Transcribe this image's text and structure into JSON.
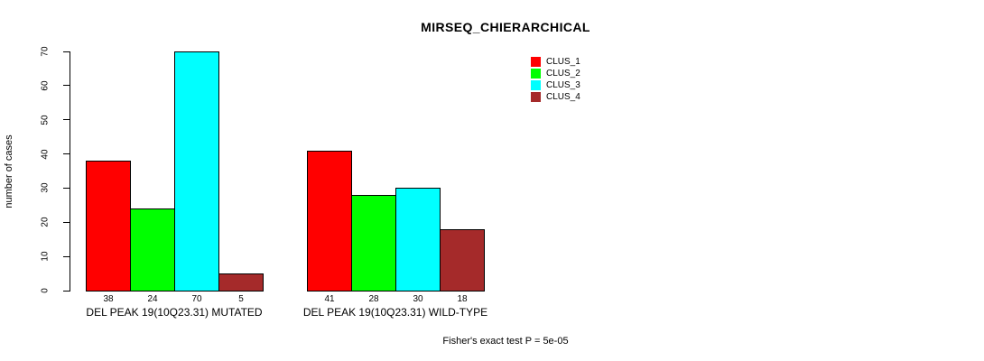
{
  "chart_data": {
    "type": "bar",
    "title": "MIRSEQ_CHIERARCHICAL",
    "xlabel": "",
    "ylabel": "number of cases",
    "ylim": [
      0,
      70
    ],
    "yticks": [
      0,
      10,
      20,
      30,
      40,
      50,
      60,
      70
    ],
    "grid": false,
    "legend_position": "top-right",
    "bar_border_color": "#000000",
    "categories": [
      "DEL PEAK 19(10Q23.31) MUTATED",
      "DEL PEAK 19(10Q23.31) WILD-TYPE"
    ],
    "series": [
      {
        "name": "CLUS_1",
        "color": "#FF0000",
        "values": [
          38,
          41
        ]
      },
      {
        "name": "CLUS_2",
        "color": "#00FF00",
        "values": [
          24,
          28
        ]
      },
      {
        "name": "CLUS_3",
        "color": "#00FFFF",
        "values": [
          70,
          30
        ]
      },
      {
        "name": "CLUS_4",
        "color": "#A52A2A",
        "values": [
          5,
          18
        ]
      }
    ],
    "bar_value_labels": {
      "DEL PEAK 19(10Q23.31) MUTATED": [
        38,
        24,
        70,
        5
      ],
      "DEL PEAK 19(10Q23.31) WILD-TYPE": [
        41,
        28,
        30,
        18
      ]
    },
    "annotation": "Fisher's exact test P = 5e-05"
  }
}
